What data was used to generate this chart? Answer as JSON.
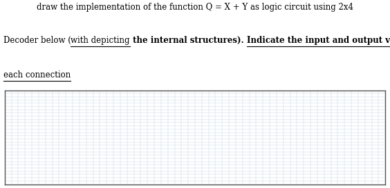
{
  "line1": "draw the implementation of the function Q = X + Y as logic circuit using 2x4",
  "line2_seg1": "Decoder below (",
  "line2_seg2": "with depicting",
  "line2_seg3": " the internal structures). ",
  "line2_seg4": "Indicate the input and output values on",
  "line3": "each connection",
  "text_color": "#000000",
  "bg_color": "#ffffff",
  "grid_color": "#c8d8e8",
  "box_border_color": "#555555",
  "font_size": 8.5,
  "fig_width": 5.64,
  "fig_height": 2.72,
  "dpi": 100
}
